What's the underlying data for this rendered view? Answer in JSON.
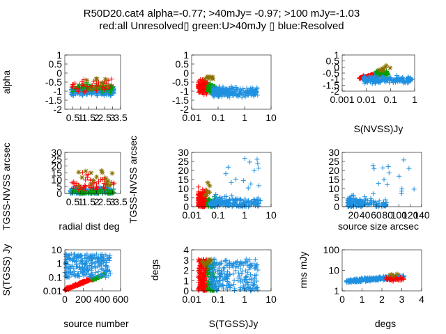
{
  "figure": {
    "title_line1": "R50D20.cat4 alpha=-0.77; >40mJy= -0.97; >100 mJy=-1.03",
    "title_line2": "red:all Unresolved▯ green:U>40mJy ▯ blue:Resolved"
  },
  "colors": {
    "red": "#ff0000",
    "green": "#00a000",
    "blue": "#1e90e0",
    "olive": "#8a7000"
  },
  "chart_data": [
    {
      "type": "scatter",
      "id": "p1",
      "xlabel": "",
      "ylabel": "alpha",
      "x_ticks": [
        "0.5",
        "1",
        "1.5",
        "2",
        "2.5",
        "3",
        "3.5"
      ],
      "y_ticks": [
        "1",
        "0.5",
        "0",
        "-0.5",
        "-1",
        "-1.5",
        "-2"
      ],
      "xlim": [
        0,
        3.5
      ],
      "ylim": [
        -2,
        1
      ],
      "xscale": "linear",
      "yscale": "linear",
      "grid": false
    },
    {
      "type": "scatter",
      "id": "p2",
      "xlabel": "",
      "ylabel": "",
      "x_ticks": [
        "0.01",
        "0.1",
        "1",
        "10"
      ],
      "y_ticks": [
        "1",
        "0.5",
        "0",
        "-0.5",
        "-1",
        "-1.5",
        "-2"
      ],
      "xlim": [
        0.01,
        10
      ],
      "ylim": [
        -2,
        1
      ],
      "xscale": "log",
      "yscale": "linear",
      "grid": false
    },
    {
      "type": "scatter",
      "id": "p3",
      "xlabel": "S(NVSS)Jy",
      "ylabel": "",
      "x_ticks": [
        "0.001",
        "0.01",
        "0.1",
        "1"
      ],
      "y_ticks": [
        "1",
        "0.5",
        "0",
        "-0.5",
        "-1",
        "-1.5",
        "-2"
      ],
      "xlim": [
        0.001,
        1
      ],
      "ylim": [
        -2,
        1
      ],
      "xscale": "log",
      "yscale": "linear",
      "grid": false
    },
    {
      "type": "scatter",
      "id": "p4",
      "xlabel": "radial dist deg",
      "ylabel": "TGSS-NVSS arcsec",
      "x_ticks": [
        "0.5",
        "1",
        "1.5",
        "2",
        "2.5",
        "3",
        "3.5"
      ],
      "y_ticks": [
        "30",
        "25",
        "20",
        "15",
        "10",
        "5",
        "0"
      ],
      "xlim": [
        0,
        3.5
      ],
      "ylim": [
        0,
        30
      ],
      "xscale": "linear",
      "yscale": "linear",
      "grid": false
    },
    {
      "type": "scatter",
      "id": "p5",
      "xlabel": "",
      "ylabel": "TGSS-NVSS arcsec",
      "x_ticks": [
        "0.01",
        "0.1",
        "1",
        "10"
      ],
      "y_ticks": [
        "30",
        "25",
        "20",
        "15",
        "10",
        "5",
        "0"
      ],
      "xlim": [
        0.01,
        10
      ],
      "ylim": [
        0,
        30
      ],
      "xscale": "log",
      "yscale": "linear",
      "grid": false
    },
    {
      "type": "scatter",
      "id": "p6",
      "xlabel": "source size arcsec",
      "ylabel": "",
      "x_ticks": [
        "20",
        "40",
        "60",
        "80",
        "100",
        "120",
        "140"
      ],
      "y_ticks": [
        "30",
        "25",
        "20",
        "15",
        "10",
        "5",
        "0"
      ],
      "xlim": [
        0,
        140
      ],
      "ylim": [
        0,
        30
      ],
      "xscale": "linear",
      "yscale": "linear",
      "grid": false
    },
    {
      "type": "scatter",
      "id": "p7",
      "xlabel": "source number",
      "ylabel": "S(TGSS) Jy",
      "x_ticks": [
        "0",
        "200",
        "400",
        "600"
      ],
      "y_ticks": [
        "10",
        "1",
        "0.1",
        "0.01"
      ],
      "xlim": [
        0,
        600
      ],
      "ylim": [
        0.01,
        10
      ],
      "xscale": "linear",
      "yscale": "log",
      "grid": false
    },
    {
      "type": "scatter",
      "id": "p8",
      "xlabel": "S(TGSS)Jy",
      "ylabel": "degs",
      "x_ticks": [
        "0.01",
        "0.1",
        "1",
        "10"
      ],
      "y_ticks": [
        "4",
        "3",
        "2",
        "1",
        "0"
      ],
      "xlim": [
        0.01,
        10
      ],
      "ylim": [
        0,
        4
      ],
      "xscale": "log",
      "yscale": "linear",
      "grid": false
    },
    {
      "type": "scatter",
      "id": "p9",
      "xlabel": "degs",
      "ylabel": "rms mJy",
      "x_ticks": [
        "0",
        "1",
        "2",
        "3",
        "4"
      ],
      "y_ticks": [
        "100",
        "10",
        "1"
      ],
      "xlim": [
        0,
        4
      ],
      "ylim": [
        1,
        100
      ],
      "xscale": "linear",
      "yscale": "log",
      "grid": false
    }
  ]
}
